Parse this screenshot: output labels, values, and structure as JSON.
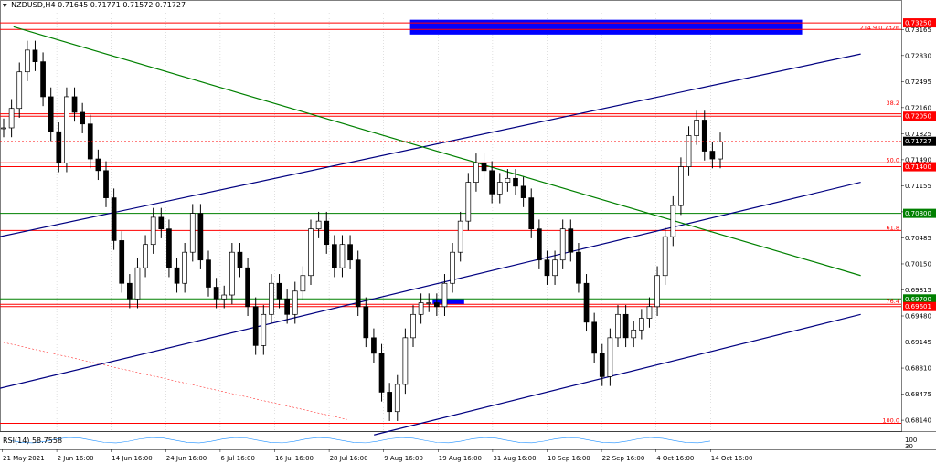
{
  "header": {
    "symbol": "NZDUSD,H4",
    "ohlc": "0.71645 0.71771 0.71572 0.71727"
  },
  "colors": {
    "background": "#ffffff",
    "candle": "#000000",
    "horizontal_level": "#ff0000",
    "channel_line": "#000080",
    "trend_line": "#008000",
    "fib_text": "#ff0000",
    "zone_fill": "#0000ff",
    "price_tag_red": "#ff0000",
    "price_tag_green": "#008000",
    "price_tag_black": "#000000",
    "grid": "#c0c0c0",
    "rsi_line": "#1e90ff"
  },
  "chart_data": {
    "type": "candlestick",
    "title": "",
    "xlabel": "",
    "ylabel": "",
    "symbol": "NZDUSD",
    "timeframe": "H4",
    "ylim": [
      0.68,
      0.7338
    ],
    "grid": true,
    "x_tick_labels": [
      "21 May 2021",
      "2 Jun 16:00",
      "14 Jun 16:00",
      "24 Jun 16:00",
      "6 Jul 16:00",
      "16 Jul 16:00",
      "28 Jul 16:00",
      "9 Aug 16:00",
      "19 Aug 16:00",
      "31 Aug 16:00",
      "10 Sep 16:00",
      "22 Sep 16:00",
      "4 Oct 16:00",
      "14 Oct 16:00"
    ],
    "y_tick_labels": [
      "0.73165",
      "0.72830",
      "0.72495",
      "0.72160",
      "0.71825",
      "0.71490",
      "0.71155",
      "0.70820",
      "0.70485",
      "0.70150",
      "0.69815",
      "0.69480",
      "0.69145",
      "0.68810",
      "0.68475",
      "0.68140"
    ],
    "close_path": [
      [
        0,
        0.719
      ],
      [
        1,
        0.7215
      ],
      [
        2,
        0.7262
      ],
      [
        3,
        0.729
      ],
      [
        4,
        0.7275
      ],
      [
        5,
        0.723
      ],
      [
        6,
        0.7185
      ],
      [
        7,
        0.7145
      ],
      [
        8,
        0.723
      ],
      [
        9,
        0.721
      ],
      [
        10,
        0.7195
      ],
      [
        11,
        0.715
      ],
      [
        12,
        0.7135
      ],
      [
        13,
        0.71
      ],
      [
        14,
        0.7045
      ],
      [
        15,
        0.699
      ],
      [
        16,
        0.697
      ],
      [
        17,
        0.701
      ],
      [
        18,
        0.704
      ],
      [
        19,
        0.7075
      ],
      [
        20,
        0.706
      ],
      [
        21,
        0.701
      ],
      [
        22,
        0.699
      ],
      [
        23,
        0.703
      ],
      [
        24,
        0.708
      ],
      [
        25,
        0.702
      ],
      [
        26,
        0.6985
      ],
      [
        27,
        0.697
      ],
      [
        28,
        0.6975
      ],
      [
        29,
        0.703
      ],
      [
        30,
        0.701
      ],
      [
        31,
        0.696
      ],
      [
        32,
        0.691
      ],
      [
        33,
        0.695
      ],
      [
        34,
        0.699
      ],
      [
        35,
        0.697
      ],
      [
        36,
        0.695
      ],
      [
        37,
        0.698
      ],
      [
        38,
        0.7
      ],
      [
        39,
        0.706
      ],
      [
        40,
        0.707
      ],
      [
        41,
        0.704
      ],
      [
        42,
        0.701
      ],
      [
        43,
        0.704
      ],
      [
        44,
        0.702
      ],
      [
        45,
        0.696
      ],
      [
        46,
        0.692
      ],
      [
        47,
        0.69
      ],
      [
        48,
        0.685
      ],
      [
        49,
        0.6825
      ],
      [
        50,
        0.686
      ],
      [
        51,
        0.692
      ],
      [
        52,
        0.695
      ],
      [
        53,
        0.6965
      ],
      [
        54,
        0.6965
      ],
      [
        55,
        0.696
      ],
      [
        56,
        0.699
      ],
      [
        57,
        0.703
      ],
      [
        58,
        0.707
      ],
      [
        59,
        0.712
      ],
      [
        60,
        0.7145
      ],
      [
        61,
        0.7135
      ],
      [
        62,
        0.7105
      ],
      [
        63,
        0.712
      ],
      [
        64,
        0.7125
      ],
      [
        65,
        0.7115
      ],
      [
        66,
        0.71
      ],
      [
        67,
        0.706
      ],
      [
        68,
        0.702
      ],
      [
        69,
        0.7
      ],
      [
        70,
        0.702
      ],
      [
        71,
        0.706
      ],
      [
        72,
        0.703
      ],
      [
        73,
        0.699
      ],
      [
        74,
        0.694
      ],
      [
        75,
        0.69
      ],
      [
        76,
        0.687
      ],
      [
        77,
        0.692
      ],
      [
        78,
        0.695
      ],
      [
        79,
        0.692
      ],
      [
        80,
        0.693
      ],
      [
        81,
        0.6945
      ],
      [
        82,
        0.696
      ],
      [
        83,
        0.7
      ],
      [
        84,
        0.705
      ],
      [
        85,
        0.709
      ],
      [
        86,
        0.714
      ],
      [
        87,
        0.718
      ],
      [
        88,
        0.72
      ],
      [
        89,
        0.716
      ],
      [
        90,
        0.715
      ],
      [
        91,
        0.7172
      ]
    ],
    "horizontal_levels": [
      {
        "price": 0.7325,
        "label": "0.73250",
        "tag": "red"
      },
      {
        "price": 0.73165,
        "label": "",
        "tag": "none"
      },
      {
        "price": 0.7205,
        "label": "0.72050",
        "tag": "red"
      },
      {
        "price": 0.7208,
        "label": "",
        "tag": "none"
      },
      {
        "price": 0.714,
        "label": "0.71400",
        "tag": "red"
      },
      {
        "price": 0.7145,
        "label": "",
        "tag": "none"
      },
      {
        "price": 0.708,
        "label": "0.70800",
        "tag": "green"
      },
      {
        "price": 0.7058,
        "label": "",
        "tag": "none"
      },
      {
        "price": 0.697,
        "label": "0.69700",
        "tag": "green"
      },
      {
        "price": 0.69601,
        "label": "0.69601",
        "tag": "red"
      },
      {
        "price": 0.6963,
        "label": "",
        "tag": "none"
      },
      {
        "price": 0.681,
        "label": "",
        "tag": "none"
      }
    ],
    "current_price": {
      "price": 0.71727,
      "label": "0.71727"
    },
    "fib_labels": [
      {
        "price": 0.7218,
        "text": "38.2"
      },
      {
        "price": 0.7145,
        "text": "50.0"
      },
      {
        "price": 0.7058,
        "text": "61.8"
      },
      {
        "price": 0.6963,
        "text": "76.4"
      },
      {
        "price": 0.681,
        "text": "100.0"
      },
      {
        "price": 0.7315,
        "text": "214.9 0.7326"
      }
    ],
    "zones": [
      {
        "x0": 0.455,
        "x1": 0.89,
        "y0": 0.7329,
        "y1": 0.731
      },
      {
        "x0": 0.48,
        "x1": 0.515,
        "y0": 0.697,
        "y1": 0.6963
      }
    ],
    "trendlines": [
      {
        "color": "channel_line",
        "x0": 0.0,
        "y0": 0.705,
        "x1": 0.955,
        "y1": 0.7285
      },
      {
        "color": "channel_line",
        "x0": 0.0,
        "y0": 0.6855,
        "x1": 0.955,
        "y1": 0.712
      },
      {
        "color": "channel_line",
        "x0": 0.415,
        "y0": 0.6795,
        "x1": 0.955,
        "y1": 0.695
      },
      {
        "color": "trend_line",
        "x0": 0.015,
        "y0": 0.732,
        "x1": 0.955,
        "y1": 0.7
      },
      {
        "color": "fib_text",
        "x0": 0.0,
        "y0": 0.6915,
        "x1": 0.385,
        "y1": 0.6815
      }
    ],
    "rsi": {
      "label": "RSI(14) 58.7558",
      "value": 58.7558,
      "axis_labels": [
        "100",
        "30"
      ]
    }
  }
}
